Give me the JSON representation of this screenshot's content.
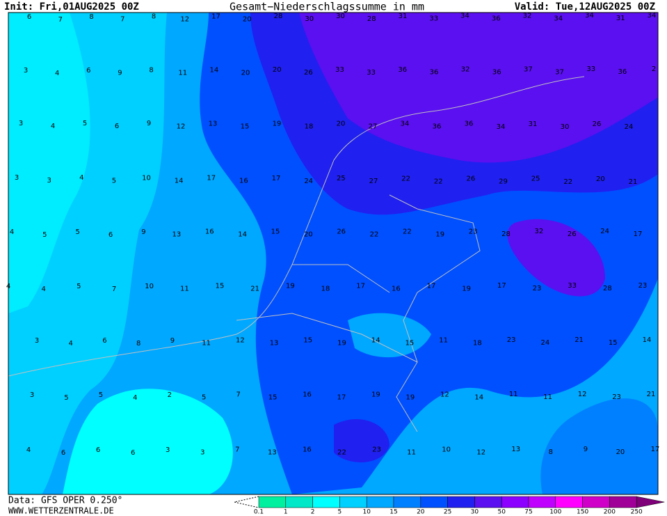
{
  "header": {
    "init": "Init: Fri,01AUG2025 00Z",
    "title": "Gesamt−Niederschlagssumme in mm",
    "valid": "Valid: Tue,12AUG2025 00Z"
  },
  "map": {
    "rows": [
      [
        6,
        7,
        8,
        7,
        8,
        12,
        17,
        20,
        28,
        30,
        30,
        28,
        31,
        33,
        34,
        36,
        32,
        34,
        34,
        31,
        34
      ],
      [
        3,
        4,
        6,
        9,
        8,
        11,
        14,
        20,
        20,
        26,
        33,
        33,
        36,
        36,
        32,
        36,
        37,
        37,
        33,
        36,
        2
      ],
      [
        3,
        4,
        5,
        6,
        9,
        12,
        13,
        15,
        19,
        18,
        20,
        27,
        34,
        36,
        36,
        34,
        31,
        30,
        26,
        24
      ],
      [
        3,
        3,
        4,
        5,
        10,
        14,
        17,
        16,
        17,
        24,
        25,
        27,
        22,
        22,
        26,
        29,
        25,
        22,
        20,
        21
      ],
      [
        4,
        5,
        5,
        6,
        9,
        13,
        16,
        14,
        15,
        20,
        26,
        22,
        22,
        19,
        23,
        28,
        32,
        26,
        24,
        17
      ],
      [
        4,
        4,
        5,
        7,
        10,
        11,
        15,
        21,
        19,
        18,
        17,
        16,
        17,
        19,
        17,
        23,
        33,
        28,
        23
      ],
      [
        3,
        4,
        6,
        8,
        9,
        11,
        12,
        13,
        15,
        19,
        14,
        15,
        11,
        18,
        23,
        24,
        21,
        15,
        14
      ],
      [
        3,
        5,
        5,
        4,
        2,
        5,
        7,
        15,
        16,
        17,
        19,
        19,
        12,
        14,
        11,
        11,
        12,
        23,
        21
      ],
      [
        4,
        6,
        6,
        6,
        3,
        3,
        7,
        13,
        16,
        22,
        23,
        11,
        10,
        12,
        13,
        8,
        9,
        20,
        17
      ]
    ]
  },
  "colorbar": {
    "labels": [
      0.1,
      1,
      2,
      5,
      10,
      15,
      20,
      25,
      30,
      50,
      75,
      100,
      150,
      200,
      250
    ],
    "colors": [
      "#00f0a0",
      "#00e8c8",
      "#00ffff",
      "#00d0ff",
      "#00a8ff",
      "#0080ff",
      "#0050ff",
      "#2020f0",
      "#5a10f0",
      "#8c00ff",
      "#c000ff",
      "#ff00ff",
      "#d000c8",
      "#a00098",
      "#80007a"
    ]
  },
  "footer": {
    "data": "Data: GFS OPER 0.250°",
    "site": "WWW.WETTERZENTRALE.DE"
  }
}
